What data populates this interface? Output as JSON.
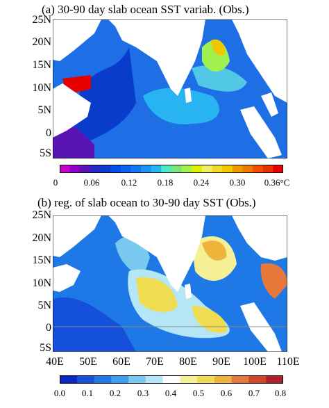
{
  "panel_a": {
    "title": "(a) 30-90 day slab ocean SST variab. (Obs.)",
    "lat_labels": [
      "25N",
      "20N",
      "15N",
      "10N",
      "5N",
      "0",
      "5S"
    ],
    "colorbar": {
      "labels": [
        "0",
        "0.06",
        "0.12",
        "0.18",
        "0.24",
        "0.30",
        "0.36°C"
      ],
      "colors": [
        "#c800c8",
        "#8c00c8",
        "#5a14b4",
        "#2828c8",
        "#0a3ccc",
        "#0050e6",
        "#0a64f0",
        "#1478f0",
        "#1e96f0",
        "#28b4f0",
        "#50e6c8",
        "#78e678",
        "#a0f050",
        "#dcf000",
        "#f0f064",
        "#f0dc28",
        "#f0c800",
        "#f09600",
        "#f07800",
        "#f05000",
        "#e63200",
        "#e60000"
      ]
    }
  },
  "panel_b": {
    "title": "(b) reg. of slab ocean to 30-90 day SST (Obs.)",
    "lat_labels": [
      "25N",
      "20N",
      "15N",
      "10N",
      "5N",
      "0",
      "5S"
    ],
    "lon_labels": [
      "40E",
      "50E",
      "60E",
      "70E",
      "80E",
      "90E",
      "100E",
      "110E"
    ],
    "colorbar": {
      "labels": [
        "0.0",
        "0.1",
        "0.2",
        "0.3",
        "0.4",
        "0.5",
        "0.6",
        "0.7",
        "0.8"
      ],
      "colors": [
        "#0a28c8",
        "#1450dc",
        "#1e78e6",
        "#3ca0f0",
        "#78c8f0",
        "#b4e6f5",
        "#ffffff",
        "#f5f096",
        "#f0dc50",
        "#f0b43c",
        "#e6783c",
        "#d24628",
        "#b41e28"
      ]
    }
  }
}
